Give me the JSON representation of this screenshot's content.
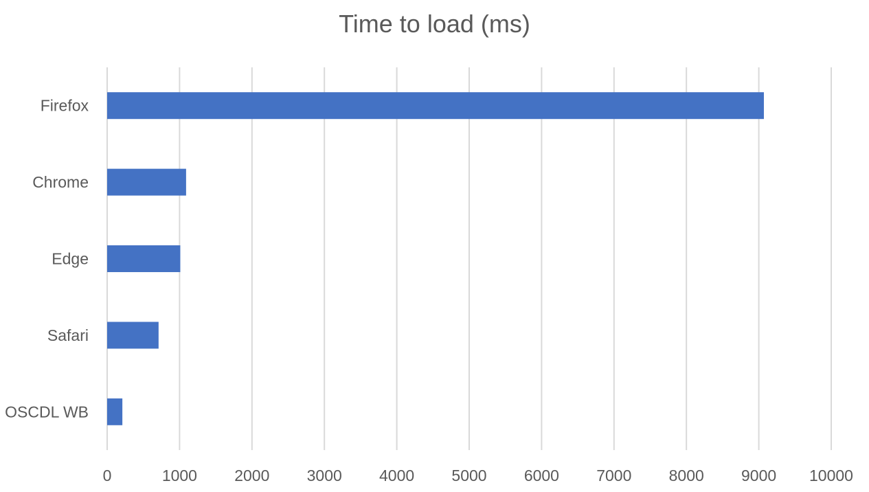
{
  "chart_data": {
    "type": "bar",
    "orientation": "horizontal",
    "title": "Time to load (ms)",
    "xlabel": "",
    "ylabel": "",
    "categories": [
      "Firefox",
      "Chrome",
      "Edge",
      "Safari",
      "OSCDL WB"
    ],
    "values": [
      9070,
      1090,
      1010,
      710,
      210
    ],
    "xlim": [
      0,
      10000
    ],
    "x_ticks": [
      0,
      1000,
      2000,
      3000,
      4000,
      5000,
      6000,
      7000,
      8000,
      9000,
      10000
    ],
    "grid": "vertical",
    "legend": "none",
    "colors": {
      "bar": "#4472C4",
      "grid": "#D9D9D9",
      "text": "#595959"
    }
  }
}
